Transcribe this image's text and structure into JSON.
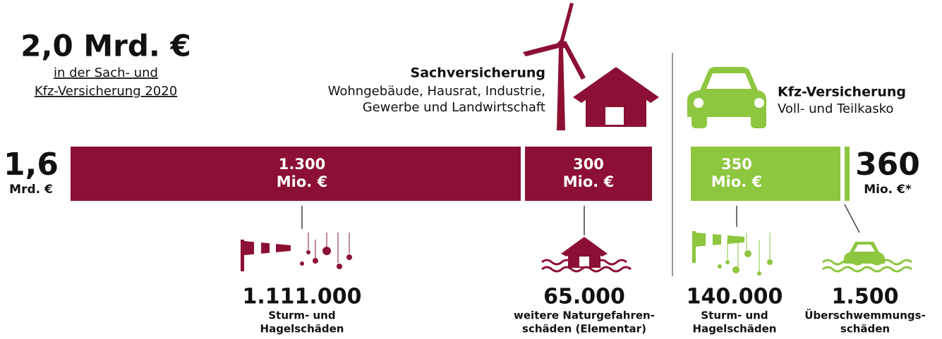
{
  "headline": {
    "amount": "2,0 Mrd. €",
    "lines": [
      "in der Sach- und",
      "Kfz-Versicherung 2020"
    ]
  },
  "sach": {
    "title": "Sachversicherung",
    "lines": [
      "Wohngebäude, Hausrat, Industrie,",
      "Gewerbe und Landwirtschaft"
    ],
    "total": {
      "number": "1,6",
      "unit": "Mrd. €"
    },
    "segments": [
      {
        "number": "1.300",
        "unit": "Mio. €"
      },
      {
        "number": "300",
        "unit": "Mio. €"
      }
    ],
    "claims": [
      {
        "count": "1.111.000",
        "lines": [
          "Sturm- und",
          "Hagelschäden"
        ]
      },
      {
        "count": "65.000",
        "lines": [
          "weitere Naturgefahren-",
          "schäden (Elementar)"
        ]
      }
    ]
  },
  "kfz": {
    "title": "Kfz-Versicherung",
    "lines": [
      "Voll- und Teilkasko"
    ],
    "total": {
      "number": "360",
      "unit": "Mio. €*"
    },
    "segments": [
      {
        "number": "350",
        "unit": "Mio. €"
      }
    ],
    "claims": [
      {
        "count": "140.000",
        "lines": [
          "Sturm- und",
          "Hagelschäden"
        ]
      },
      {
        "count": "1.500",
        "lines": [
          "Überschwemmungs-",
          "schäden"
        ]
      }
    ]
  }
}
